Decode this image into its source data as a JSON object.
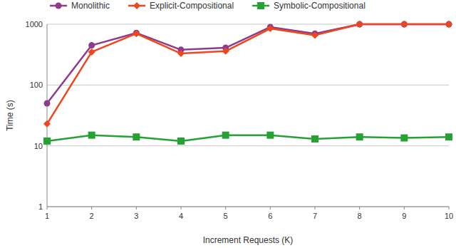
{
  "chart_data": {
    "type": "line",
    "x_label": "Increment Requests (K)",
    "y_label": "Time (s)",
    "x": [
      1,
      2,
      3,
      4,
      5,
      6,
      7,
      8,
      9,
      10
    ],
    "xlim": [
      1,
      10
    ],
    "xticks": [
      1,
      2,
      3,
      4,
      5,
      6,
      7,
      8,
      9,
      10
    ],
    "ylim": [
      1,
      1000
    ],
    "yticks": [
      1,
      10,
      100,
      1000
    ],
    "log": "y",
    "grid": true,
    "legend": "top",
    "series": [
      {
        "name": "Monolithic",
        "color": "#8e3b8e",
        "marker": "circle",
        "values": [
          50,
          450,
          720,
          380,
          410,
          900,
          700,
          1000,
          1000,
          1000
        ]
      },
      {
        "name": "Explicit-Compositional",
        "color": "#f0461c",
        "marker": "diamond",
        "values": [
          23,
          350,
          700,
          330,
          360,
          850,
          660,
          1000,
          1000,
          1000
        ]
      },
      {
        "name": "Symbolic-Compositional",
        "color": "#25a233",
        "marker": "square",
        "values": [
          12,
          15,
          14,
          12,
          15,
          15,
          13,
          14,
          13.5,
          14
        ]
      }
    ]
  }
}
